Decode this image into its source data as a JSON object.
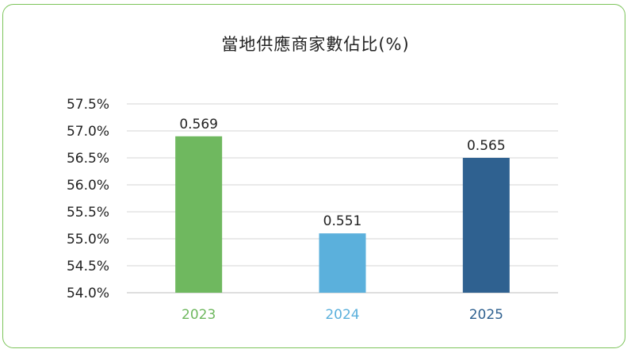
{
  "chart_data": {
    "type": "bar",
    "title": "當地供應商家數佔比(%)",
    "categories": [
      "2023",
      "2024",
      "2025"
    ],
    "values": [
      0.569,
      0.551,
      0.565
    ],
    "data_labels": [
      "0.569",
      "0.551",
      "0.565"
    ],
    "bar_colors": [
      "#6fb85f",
      "#5bb0dc",
      "#2f6190"
    ],
    "category_label_colors": [
      "#6fb85f",
      "#5bb0dc",
      "#2f6190"
    ],
    "ylim": [
      0.54,
      0.575
    ],
    "yticks": [
      0.54,
      0.545,
      0.55,
      0.555,
      0.56,
      0.565,
      0.57,
      0.575
    ],
    "ytick_labels": [
      "54.0%",
      "54.5%",
      "55.0%",
      "55.5%",
      "56.0%",
      "56.5%",
      "57.0%",
      "57.5%"
    ],
    "grid": true,
    "legend": "none",
    "border_color": "#7cc45a"
  }
}
